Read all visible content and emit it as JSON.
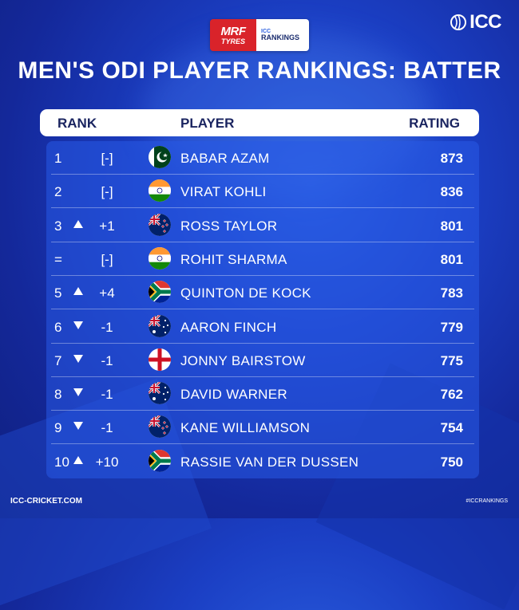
{
  "sponsor": {
    "brand_top": "MRF",
    "brand_bottom": "TYRES",
    "partner_top": "ICC",
    "partner_bottom": "RANKINGS"
  },
  "icc_logo_text": "ICC",
  "title": "MEN'S ODI PLAYER RANKINGS: BATTER",
  "header": {
    "rank": "RANK",
    "player": "PLAYER",
    "rating": "RATING"
  },
  "rows": [
    {
      "rank": "1",
      "arrow": "none",
      "change": "[-]",
      "flag": "pakistan-flag-icon",
      "player": "BABAR AZAM",
      "rating": "873"
    },
    {
      "rank": "2",
      "arrow": "none",
      "change": "[-]",
      "flag": "india-flag-icon",
      "player": "VIRAT KOHLI",
      "rating": "836"
    },
    {
      "rank": "3",
      "arrow": "up",
      "change": "+1",
      "flag": "new-zealand-flag-icon",
      "player": "ROSS TAYLOR",
      "rating": "801"
    },
    {
      "rank": "=",
      "arrow": "none",
      "change": "[-]",
      "flag": "india-flag-icon",
      "player": "ROHIT SHARMA",
      "rating": "801"
    },
    {
      "rank": "5",
      "arrow": "up",
      "change": "+4",
      "flag": "south-africa-flag-icon",
      "player": "QUINTON DE KOCK",
      "rating": "783"
    },
    {
      "rank": "6",
      "arrow": "down",
      "change": "-1",
      "flag": "australia-flag-icon",
      "player": "AARON FINCH",
      "rating": "779"
    },
    {
      "rank": "7",
      "arrow": "down",
      "change": "-1",
      "flag": "england-flag-icon",
      "player": "JONNY BAIRSTOW",
      "rating": "775"
    },
    {
      "rank": "8",
      "arrow": "down",
      "change": "-1",
      "flag": "australia-flag-icon",
      "player": "DAVID WARNER",
      "rating": "762"
    },
    {
      "rank": "9",
      "arrow": "down",
      "change": "-1",
      "flag": "new-zealand-flag-icon",
      "player": "KANE WILLIAMSON",
      "rating": "754"
    },
    {
      "rank": "10",
      "arrow": "up",
      "change": "+10",
      "flag": "south-africa-flag-icon",
      "player": "RASSIE VAN DER DUSSEN",
      "rating": "750"
    }
  ],
  "footer": {
    "website": "ICC-CRICKET.COM",
    "hashtag": "#ICCRANKINGS"
  },
  "colors": {
    "background": "#1b3fc4",
    "header_bar": "#ffffff",
    "header_text": "#1a2460",
    "sponsor_red": "#d9232a"
  }
}
